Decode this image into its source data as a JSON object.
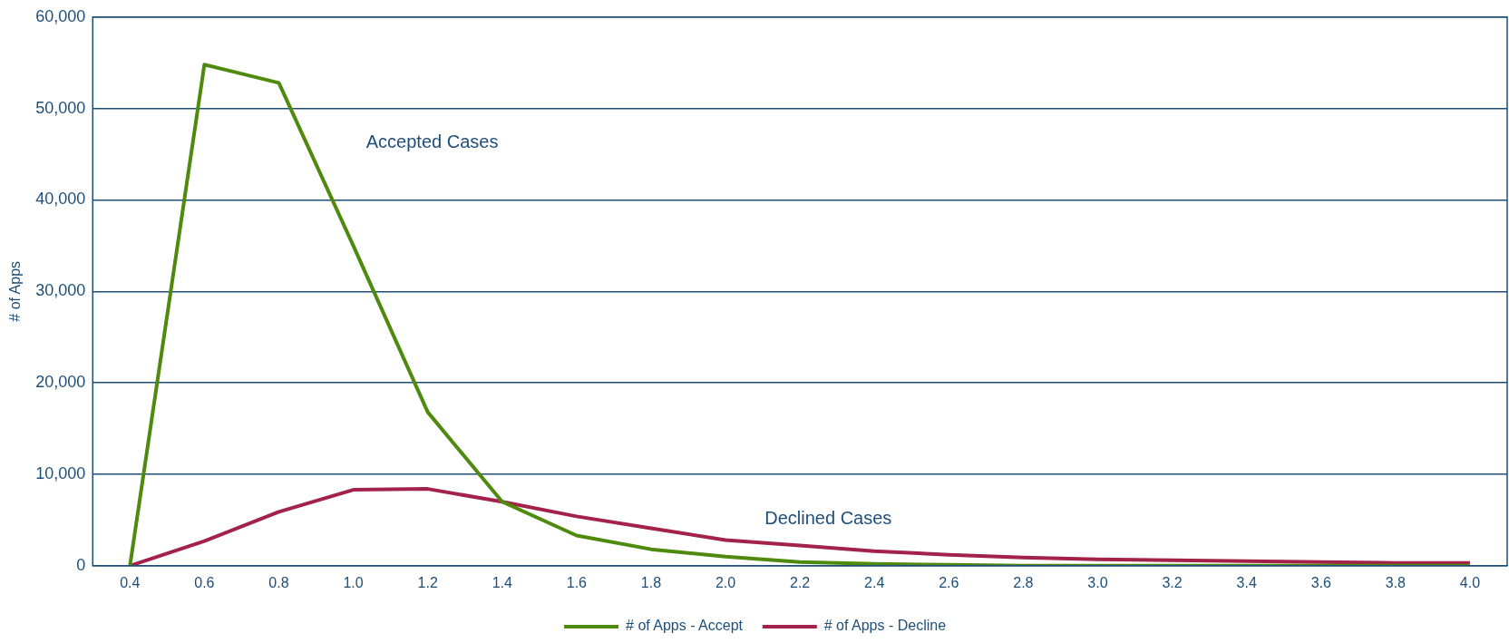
{
  "chart_data": {
    "type": "line",
    "ylabel": "# of Apps",
    "categories": [
      "0.4",
      "0.6",
      "0.8",
      "1.0",
      "1.2",
      "1.4",
      "1.6",
      "1.8",
      "2.0",
      "2.2",
      "2.4",
      "2.6",
      "2.8",
      "3.0",
      "3.2",
      "3.4",
      "3.6",
      "3.8",
      "4.0"
    ],
    "series": [
      {
        "name": "# of Apps - Accept",
        "color": "#4e8a0e",
        "values": [
          0,
          54800,
          52800,
          35000,
          16800,
          7000,
          3300,
          1800,
          1000,
          400,
          200,
          100,
          0,
          0,
          0,
          0,
          0,
          0,
          0
        ]
      },
      {
        "name": "# of Apps - Decline",
        "color": "#a3224a",
        "values": [
          0,
          2700,
          5900,
          8300,
          8400,
          7000,
          5400,
          4100,
          2800,
          2200,
          1600,
          1200,
          900,
          700,
          600,
          500,
          400,
          300,
          300
        ]
      }
    ],
    "ylim": [
      0,
      60000
    ],
    "yticks": [
      {
        "value": 0,
        "label": "0"
      },
      {
        "value": 10000,
        "label": "10,000"
      },
      {
        "value": 20000,
        "label": "20,000"
      },
      {
        "value": 30000,
        "label": "30,000"
      },
      {
        "value": 40000,
        "label": "40,000"
      },
      {
        "value": 50000,
        "label": "50,000"
      },
      {
        "value": 60000,
        "label": "60,000"
      }
    ],
    "annotations": [
      "Accepted Cases",
      "Declined Cases"
    ],
    "grid": "y",
    "legend": "bottom",
    "marker": "none",
    "line_style": "solid"
  }
}
